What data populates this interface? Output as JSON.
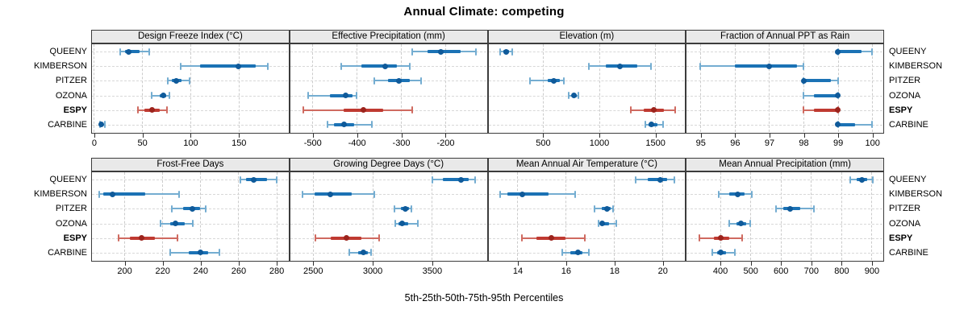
{
  "title": "Annual Climate: competing",
  "caption": "5th-25th-50th-75th-95th Percentiles",
  "colors": {
    "normal": {
      "light": "#74add1",
      "main": "#1b72b5",
      "dot": "#0f5a9a"
    },
    "highlight": {
      "light": "#cf6a60",
      "main": "#bf3a31",
      "dot": "#9c241d"
    },
    "strip_bg": "#e9e9e9",
    "border": "#3c3c3c"
  },
  "chart_data": {
    "type": "trellis-dotplot",
    "title": "Annual Climate: competing",
    "xlabel": "5th-25th-50th-75th-95th Percentiles",
    "percentiles": [
      "5th",
      "25th",
      "50th",
      "75th",
      "95th"
    ],
    "rows": [
      "QUEENY",
      "KIMBERSON",
      "PITZER",
      "OZONA",
      "ESPY",
      "CARBINE"
    ],
    "highlight_row": "ESPY",
    "grid": "dashed",
    "panels": [
      {
        "title": "Design Freeze Index (°C)",
        "row": 0,
        "col": 0,
        "xlim": [
          -2,
          201
        ],
        "ticks": [
          0,
          50,
          100,
          150
        ],
        "values": [
          [
            27,
            32,
            36,
            47,
            57
          ],
          [
            90,
            110,
            150,
            168,
            180
          ],
          [
            77,
            81,
            85,
            91,
            99
          ],
          [
            60,
            68,
            72,
            75,
            78
          ],
          [
            46,
            52,
            60,
            68,
            76
          ],
          [
            6,
            7.5,
            8,
            9.5,
            11
          ]
        ]
      },
      {
        "title": "Effective Precipitation (mm)",
        "row": 0,
        "col": 1,
        "xlim": [
          -550,
          -108
        ],
        "ticks": [
          -500,
          -400,
          -300,
          -200
        ],
        "values": [
          [
            -275,
            -240,
            -210,
            -165,
            -130
          ],
          [
            -435,
            -390,
            -335,
            -310,
            -280
          ],
          [
            -360,
            -330,
            -305,
            -280,
            -255
          ],
          [
            -510,
            -460,
            -425,
            -410,
            -400
          ],
          [
            -520,
            -430,
            -385,
            -340,
            -275
          ],
          [
            -465,
            -452,
            -428,
            -405,
            -365
          ]
        ]
      },
      {
        "title": "Elevation (m)",
        "row": 0,
        "col": 2,
        "xlim": [
          15,
          1760
        ],
        "ticks": [
          500,
          1000,
          1500
        ],
        "values": [
          [
            120,
            150,
            170,
            195,
            230
          ],
          [
            910,
            1060,
            1190,
            1340,
            1465
          ],
          [
            385,
            540,
            600,
            650,
            690
          ],
          [
            730,
            760,
            780,
            800,
            820
          ],
          [
            1285,
            1400,
            1490,
            1580,
            1680
          ],
          [
            1410,
            1440,
            1465,
            1520,
            1570
          ]
        ]
      },
      {
        "title": "Fraction of Annual PPT as Rain",
        "row": 0,
        "col": 3,
        "xlim": [
          94.6,
          100.3
        ],
        "ticks": [
          95,
          96,
          97,
          98,
          99,
          100
        ],
        "values": [
          [
            99,
            99,
            99,
            99.7,
            100
          ],
          [
            95,
            96,
            97,
            97.8,
            98
          ],
          [
            98,
            98,
            98,
            98.8,
            99
          ],
          [
            98,
            98.3,
            99,
            99,
            99
          ],
          [
            98,
            98.3,
            99,
            99,
            99
          ],
          [
            99,
            99,
            99,
            99.5,
            100
          ]
        ]
      },
      {
        "title": "Frost-Free Days",
        "row": 1,
        "col": 0,
        "xlim": [
          183,
          286
        ],
        "ticks": [
          200,
          220,
          240,
          260,
          280
        ],
        "values": [
          [
            261,
            264,
            268,
            275,
            280
          ],
          [
            187,
            189,
            194,
            211,
            229
          ],
          [
            225,
            231,
            236,
            240,
            243
          ],
          [
            219,
            224,
            227,
            232,
            236
          ],
          [
            197,
            203,
            209,
            216,
            228
          ],
          [
            224,
            234,
            240,
            244,
            250
          ]
        ]
      },
      {
        "title": "Growing Degree Days (°C)",
        "row": 1,
        "col": 1,
        "xlim": [
          2310,
          3955
        ],
        "ticks": [
          2500,
          3000,
          3500
        ],
        "values": [
          [
            3505,
            3590,
            3745,
            3810,
            3865
          ],
          [
            2415,
            2515,
            2645,
            2830,
            3015
          ],
          [
            3185,
            3240,
            3280,
            3305,
            3330
          ],
          [
            3190,
            3220,
            3250,
            3300,
            3380
          ],
          [
            2525,
            2650,
            2785,
            2910,
            3060
          ],
          [
            2805,
            2880,
            2925,
            2960,
            2990
          ]
        ]
      },
      {
        "title": "Mean Annual Air Temperature (°C)",
        "row": 1,
        "col": 2,
        "xlim": [
          12.8,
          20.9
        ],
        "ticks": [
          14,
          16,
          18,
          20
        ],
        "values": [
          [
            18.9,
            19.4,
            19.9,
            20.2,
            20.5
          ],
          [
            13.3,
            13.6,
            14.2,
            15.3,
            16.4
          ],
          [
            17.2,
            17.5,
            17.7,
            17.85,
            17.95
          ],
          [
            17.35,
            17.45,
            17.5,
            17.8,
            18.1
          ],
          [
            14.2,
            14.8,
            15.4,
            16.0,
            16.8
          ],
          [
            15.85,
            16.2,
            16.5,
            16.7,
            16.95
          ]
        ]
      },
      {
        "title": "Mean Annual Precipitation (mm)",
        "row": 1,
        "col": 3,
        "xlim": [
          290,
          936
        ],
        "ticks": [
          400,
          500,
          600,
          700,
          800,
          900
        ],
        "values": [
          [
            830,
            850,
            867,
            885,
            905
          ],
          [
            397,
            430,
            457,
            480,
            505
          ],
          [
            585,
            610,
            630,
            665,
            710
          ],
          [
            430,
            455,
            470,
            485,
            500
          ],
          [
            333,
            380,
            403,
            430,
            472
          ],
          [
            374,
            390,
            403,
            420,
            448
          ]
        ]
      }
    ]
  }
}
